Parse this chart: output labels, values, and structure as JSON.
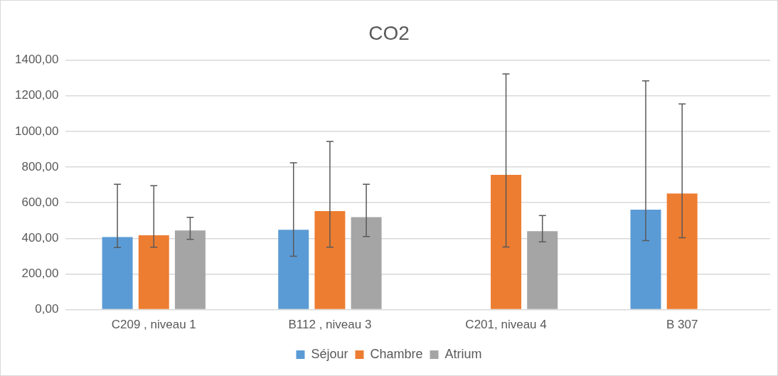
{
  "chart_data": {
    "type": "bar",
    "title": "CO2",
    "categories": [
      "C209 , niveau 1",
      "B112 , niveau 3",
      "C201, niveau 4",
      "B 307"
    ],
    "series": [
      {
        "name": "Séjour",
        "color": "#5b9bd5",
        "values": [
          407,
          448,
          3,
          561
        ],
        "errors": [
          [
            348,
            703
          ],
          [
            300,
            824
          ],
          null,
          [
            387,
            1284
          ]
        ]
      },
      {
        "name": "Chambre",
        "color": "#ed7d31",
        "values": [
          417,
          553,
          756,
          652
        ],
        "errors": [
          [
            350,
            695
          ],
          [
            350,
            944
          ],
          [
            351,
            1323
          ],
          [
            403,
            1154
          ]
        ]
      },
      {
        "name": "Atrium",
        "color": "#a5a5a5",
        "values": [
          444,
          519,
          440,
          null
        ],
        "errors": [
          [
            394,
            518
          ],
          [
            410,
            703
          ],
          [
            380,
            528
          ],
          null
        ]
      }
    ],
    "ylim": [
      0,
      1400
    ],
    "yticks": [
      {
        "value": 0,
        "label": "0,00"
      },
      {
        "value": 200,
        "label": "200,00"
      },
      {
        "value": 400,
        "label": "400,00"
      },
      {
        "value": 600,
        "label": "600,00"
      },
      {
        "value": 800,
        "label": "800,00"
      },
      {
        "value": 1000,
        "label": "1000,00"
      },
      {
        "value": 1200,
        "label": "1200,00"
      },
      {
        "value": 1400,
        "label": "1400,00"
      }
    ],
    "grid": "y",
    "legend": "bottom"
  }
}
